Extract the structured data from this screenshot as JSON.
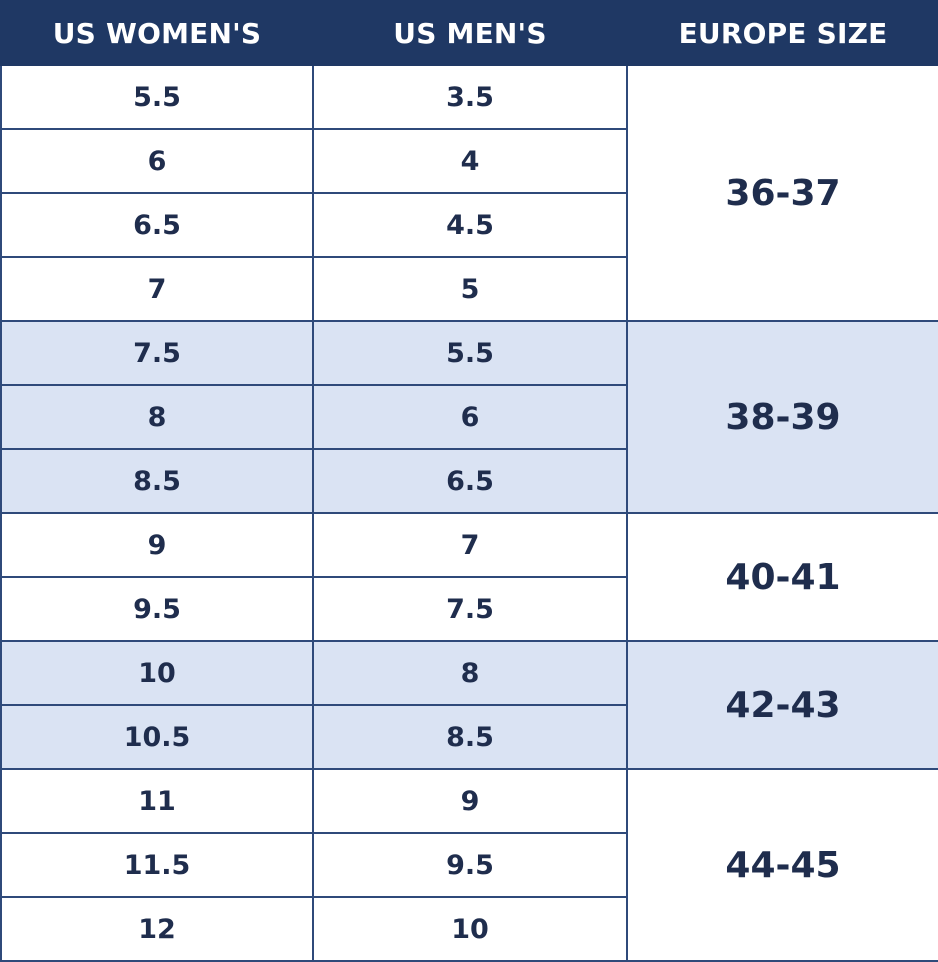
{
  "headers": [
    "US WOMEN'S",
    "US MEN'S",
    "EUROPE SIZE"
  ],
  "groups": [
    {
      "europe": "36-37",
      "shade": "white",
      "rows": [
        {
          "women": "5.5",
          "men": "3.5"
        },
        {
          "women": "6",
          "men": "4"
        },
        {
          "women": "6.5",
          "men": "4.5"
        },
        {
          "women": "7",
          "men": "5"
        }
      ]
    },
    {
      "europe": "38-39",
      "shade": "blue",
      "rows": [
        {
          "women": "7.5",
          "men": "5.5"
        },
        {
          "women": "8",
          "men": "6"
        },
        {
          "women": "8.5",
          "men": "6.5"
        }
      ]
    },
    {
      "europe": "40-41",
      "shade": "white",
      "rows": [
        {
          "women": "9",
          "men": "7"
        },
        {
          "women": "9.5",
          "men": "7.5"
        }
      ]
    },
    {
      "europe": "42-43",
      "shade": "blue",
      "rows": [
        {
          "women": "10",
          "men": "8"
        },
        {
          "women": "10.5",
          "men": "8.5"
        }
      ]
    },
    {
      "europe": "44-45",
      "shade": "white",
      "rows": [
        {
          "women": "11",
          "men": "9"
        },
        {
          "women": "11.5",
          "men": "9.5"
        },
        {
          "women": "12",
          "men": "10"
        }
      ]
    }
  ],
  "colors": {
    "header_bg": "#1f3864",
    "header_text": "#ffffff",
    "band_blue": "#dae3f3",
    "band_white": "#ffffff",
    "grid_line": "#2f4a7a",
    "cell_text": "#1f2d4d"
  }
}
